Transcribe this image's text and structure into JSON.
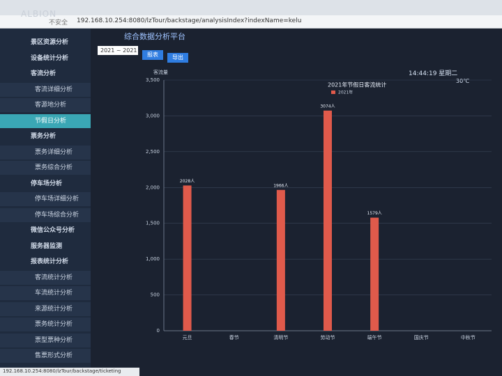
{
  "browser": {
    "security": "不安全",
    "url": "192.168.10.254:8080/lzTour/backstage/analysisIndex?indexName=kelu",
    "status_url": "192.168.10.254:8080/lzTour/backstage/ticketing"
  },
  "header": {
    "logo": "ALBION",
    "title": "综合数据分析平台",
    "date_range": "2021 ~ 2021",
    "button_report": "报表",
    "button_export": "导出",
    "time": "14:44:19 星期二",
    "temperature": "30℃"
  },
  "menu": [
    {
      "label": "景区资源分析",
      "level": 1
    },
    {
      "label": "设备统计分析",
      "level": 1
    },
    {
      "label": "客流分析",
      "level": 1
    },
    {
      "label": "客流详细分析",
      "level": 2
    },
    {
      "label": "客源地分析",
      "level": 2
    },
    {
      "label": "节假日分析",
      "level": 2
    },
    {
      "label": "票务分析",
      "level": 1
    },
    {
      "label": "票务详细分析",
      "level": 2
    },
    {
      "label": "票务综合分析",
      "level": 2
    },
    {
      "label": "停车场分析",
      "level": 1
    },
    {
      "label": "停车场详细分析",
      "level": 2
    },
    {
      "label": "停车场综合分析",
      "level": 2
    },
    {
      "label": "微信公众号分析",
      "level": 1
    },
    {
      "label": "服务器监测",
      "level": 1
    },
    {
      "label": "报表统计分析",
      "level": 1
    },
    {
      "label": "客流统计分析",
      "level": 2
    },
    {
      "label": "车流统计分析",
      "level": 2
    },
    {
      "label": "来源统计分析",
      "level": 2
    },
    {
      "label": "票务统计分析",
      "level": 2
    },
    {
      "label": "票型票种分析",
      "level": 2
    },
    {
      "label": "售票形式分析",
      "level": 2
    }
  ],
  "menu_active": 5,
  "chart_data": {
    "type": "bar",
    "title": "2021年节假日客流统计",
    "y_label": "客流量",
    "categories": [
      "元旦",
      "春节",
      "清明节",
      "劳动节",
      "端午节",
      "国庆节",
      "中秋节"
    ],
    "series": [
      {
        "name": "2021年",
        "color": "#e05a4b",
        "values": [
          2028,
          0,
          1966,
          3074,
          1579,
          0,
          0
        ],
        "value_labels": [
          "2028人",
          null,
          "1966人",
          "3074人",
          "1579人",
          null,
          null
        ]
      }
    ],
    "ylim": [
      0,
      3500
    ],
    "yticks": [
      0,
      500,
      {
        "value": 1000,
        "label": "1,000"
      },
      {
        "value": 1500,
        "label": "1,500"
      },
      {
        "value": 2000,
        "label": "2,000"
      },
      {
        "value": 2500,
        "label": "2,500"
      },
      {
        "value": 3000,
        "label": "3,000"
      },
      {
        "value": 3500,
        "label": "3,500"
      }
    ],
    "grid": true
  }
}
